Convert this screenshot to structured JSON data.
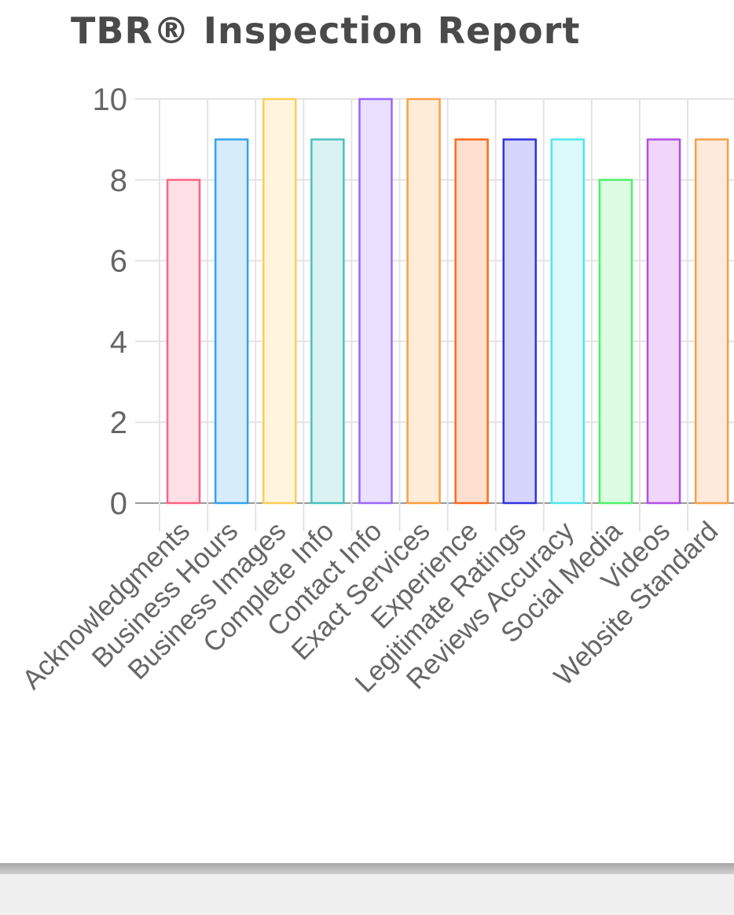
{
  "chart_data": {
    "type": "bar",
    "title": "TBR® Inspection Report",
    "xlabel": "",
    "ylabel": "",
    "ylim": [
      0,
      10
    ],
    "yticks": [
      0,
      2,
      4,
      6,
      8,
      10
    ],
    "grid": true,
    "categories": [
      "Acknowledgments",
      "Business Hours",
      "Business Images",
      "Complete Info",
      "Contact Info",
      "Exact Services",
      "Experience",
      "Legitimate Ratings",
      "Reviews Accuracy",
      "Social Media",
      "Videos",
      "Website Standard"
    ],
    "values": [
      8,
      9,
      10,
      9,
      10,
      10,
      9,
      9,
      9,
      8,
      9,
      9
    ],
    "colors": [
      {
        "stroke": "#ff6384",
        "fill": "#ffe0e6"
      },
      {
        "stroke": "#36a2eb",
        "fill": "#d7ecfb"
      },
      {
        "stroke": "#ffcd56",
        "fill": "#fff5dd"
      },
      {
        "stroke": "#4bc0c0",
        "fill": "#dbf2f2"
      },
      {
        "stroke": "#9966ff",
        "fill": "#ebe0ff"
      },
      {
        "stroke": "#ff9f40",
        "fill": "#ffecd9"
      },
      {
        "stroke": "#ff6a1a",
        "fill": "#ffdfd0"
      },
      {
        "stroke": "#3333dd",
        "fill": "#d5d5fb"
      },
      {
        "stroke": "#4ee6ee",
        "fill": "#dcfafb"
      },
      {
        "stroke": "#4ef06a",
        "fill": "#dcfde2"
      },
      {
        "stroke": "#b34fe6",
        "fill": "#f1d5fb"
      },
      {
        "stroke": "#f5a04a",
        "fill": "#fdeadb"
      }
    ]
  }
}
